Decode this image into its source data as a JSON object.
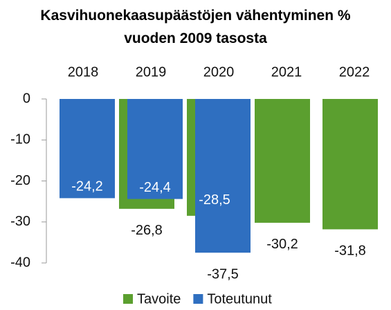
{
  "chart_data": {
    "type": "bar",
    "title": "Kasvihuonekaasupäästöjen vähentyminen % vuoden 2009 tasosta",
    "categories": [
      "2018",
      "2019",
      "2020",
      "2021",
      "2022"
    ],
    "series": [
      {
        "name": "Tavoite",
        "color": "#5b9f2f",
        "values": [
          null,
          -26.8,
          -28.5,
          -30.2,
          -31.8
        ],
        "value_labels": [
          null,
          "-26,8",
          "-28,5",
          "-30,2",
          "-31,8"
        ]
      },
      {
        "name": "Toteutunut",
        "color": "#2f6fc0",
        "values": [
          -24.2,
          -24.4,
          -37.5,
          null,
          null
        ],
        "value_labels": [
          "-24,2",
          "-24,4",
          "-37,5",
          null,
          null
        ]
      }
    ],
    "ylim": [
      -40,
      0
    ],
    "yticks": [
      0,
      -10,
      -20,
      -30,
      -40
    ],
    "legend": "bottom"
  }
}
